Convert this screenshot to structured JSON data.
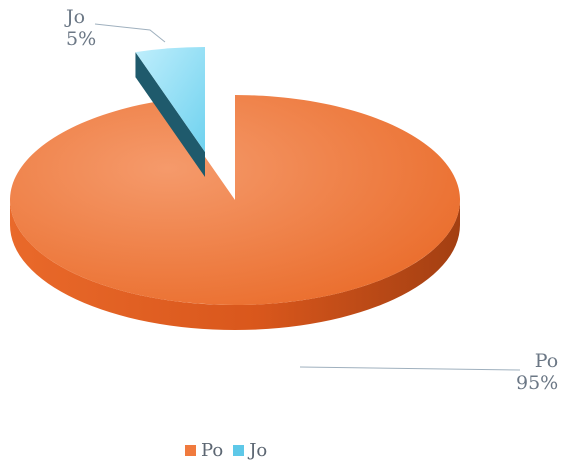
{
  "chart_data": {
    "type": "pie",
    "style": "3d-exploded",
    "categories": [
      "Po",
      "Jo"
    ],
    "values": [
      95,
      5
    ],
    "value_labels": [
      "95%",
      "5%"
    ],
    "colors": [
      "#f07a3e",
      "#5ec8e8"
    ],
    "title": "",
    "legend_position": "bottom"
  },
  "legend": {
    "items": [
      {
        "label": "Po"
      },
      {
        "label": "Jo"
      }
    ]
  },
  "labels": {
    "po_name": "Po",
    "po_pct": "95%",
    "jo_name": "Jo",
    "jo_pct": "5%"
  }
}
